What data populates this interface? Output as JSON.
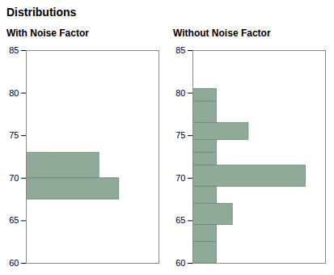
{
  "title": "Distributions",
  "chart_data": [
    {
      "type": "histogram",
      "title": "With Noise Factor",
      "orientation": "horizontal",
      "color": "#8faa98",
      "bins": [
        73.0,
        70.0,
        67.5
      ],
      "values": [
        0.55,
        0.7
      ],
      "xlim": [
        0,
        1
      ],
      "ylim": [
        60,
        85
      ],
      "yticks": [
        60,
        65,
        70,
        75,
        80,
        85
      ],
      "tick_labels": "y"
    },
    {
      "type": "histogram",
      "title": "Without Noise Factor",
      "orientation": "horizontal",
      "color": "#8faa98",
      "bins": [
        80.5,
        79.0,
        76.5,
        74.5,
        73.0,
        71.5,
        69.0,
        67.0,
        64.5,
        62.5,
        60.0
      ],
      "values": [
        0.18,
        0.18,
        0.42,
        0.18,
        0.18,
        0.85,
        0.18,
        0.3,
        0.18,
        0.18
      ],
      "xlim": [
        0,
        1
      ],
      "ylim": [
        60,
        85
      ],
      "yticks": [
        60,
        65,
        70,
        75,
        80,
        85
      ],
      "tick_labels": "y"
    }
  ]
}
